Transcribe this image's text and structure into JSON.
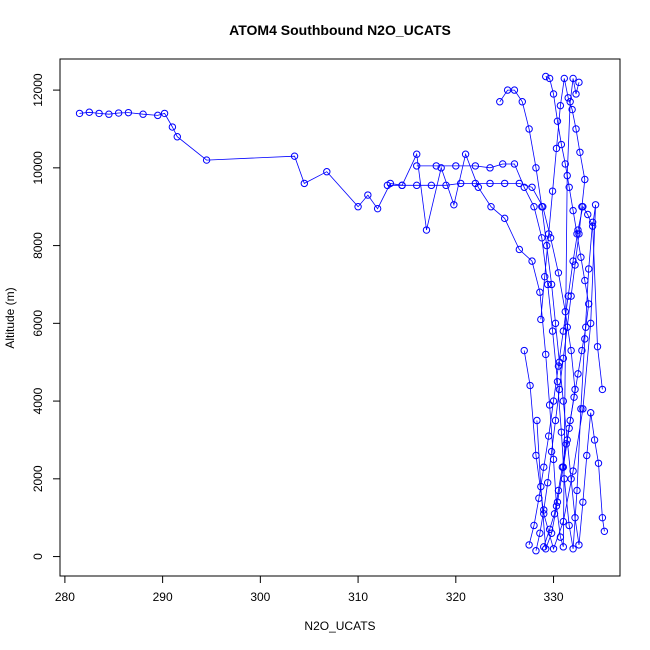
{
  "chart_data": {
    "type": "scatter",
    "title": "ATOM4 Southbound N2O_UCATS",
    "xlabel": "N2O_UCATS",
    "ylabel": "Altitude (m)",
    "xlim": [
      279.5,
      336.8
    ],
    "ylim": [
      -500,
      12800
    ],
    "x_ticks": [
      280,
      290,
      300,
      310,
      320,
      330
    ],
    "y_ticks": [
      0,
      2000,
      4000,
      6000,
      8000,
      10000,
      12000
    ],
    "grid": false,
    "legend": "none",
    "connect_points": true,
    "marker": "open-circle",
    "color": "#0000ff",
    "series": [
      {
        "x": [
          281.5,
          282.5,
          283.5,
          284.5,
          285.5,
          286.5,
          288.0,
          289.5,
          290.2,
          291.0,
          291.5,
          294.5,
          303.5,
          304.5,
          306.8,
          310.0,
          311.0,
          312.0,
          313.3,
          314.5,
          316.0,
          317.0,
          318.5,
          319.8,
          321.0,
          322.3,
          323.6,
          325.0,
          326.5,
          327.8,
          328.6,
          329.2,
          329.6,
          330.0,
          330.3,
          330.7,
          331.0,
          331.4,
          331.7,
          332.0,
          332.3,
          332.6
        ],
        "y": [
          11400,
          11430,
          11400,
          11380,
          11410,
          11420,
          11380,
          11350,
          11400,
          11050,
          10800,
          10200,
          10300,
          9600,
          9900,
          9000,
          9300,
          8950,
          9600,
          9550,
          10350,
          8400,
          10000,
          9050,
          10350,
          9500,
          9000,
          8700,
          7900,
          7600,
          6800,
          5200,
          3900,
          2500,
          1300,
          500,
          250,
          9800,
          11700,
          12300,
          11900,
          12200
        ]
      },
      {
        "x": [
          316.0,
          318.0,
          320.0,
          322.0,
          323.5,
          324.8,
          326.0,
          327.0,
          328.0,
          328.8,
          329.4,
          329.9,
          330.4,
          330.8,
          331.1,
          331.6,
          332.0,
          332.4,
          332.8,
          333.2,
          333.6,
          334.0,
          334.5,
          335.0
        ],
        "y": [
          10050,
          10050,
          10050,
          10050,
          10000,
          10100,
          10100,
          9500,
          9000,
          8200,
          7000,
          5800,
          4500,
          3200,
          2000,
          800,
          200,
          1700,
          3800,
          5600,
          7400,
          8600,
          5400,
          4300
        ]
      },
      {
        "x": [
          324.5,
          325.3,
          326.0,
          326.8,
          327.5,
          328.2,
          328.8,
          329.3,
          329.8,
          330.2,
          330.6,
          331.0,
          331.4,
          331.8,
          332.2,
          332.6,
          333.0,
          333.4,
          333.8,
          334.2,
          334.6,
          335.0,
          335.2
        ],
        "y": [
          11700,
          12000,
          12000,
          11700,
          11000,
          10000,
          9000,
          8000,
          7000,
          6000,
          5000,
          4000,
          3000,
          2000,
          1000,
          300,
          1400,
          2600,
          3700,
          3000,
          2400,
          1000,
          650
        ]
      },
      {
        "x": [
          327.5,
          328.0,
          328.5,
          329.0,
          329.5,
          330.0,
          330.5,
          331.0,
          331.5,
          332.0,
          332.5,
          333.0,
          333.5,
          334.0,
          334.3,
          333.8,
          333.0,
          332.0,
          331.0,
          330.0,
          329.0,
          328.2,
          327.6,
          327.0
        ],
        "y": [
          300,
          800,
          1500,
          2300,
          3100,
          4000,
          4900,
          5800,
          6700,
          7600,
          8400,
          9000,
          8800,
          8500,
          9050,
          6000,
          3800,
          2200,
          900,
          200,
          1100,
          2600,
          4400,
          5300
        ]
      },
      {
        "x": [
          328.2,
          328.6,
          329.0,
          329.4,
          329.8,
          330.2,
          330.6,
          331.0,
          331.4,
          331.8,
          332.2,
          332.6,
          332.9,
          333.2,
          332.7,
          332.3,
          331.9,
          331.5,
          331.1,
          330.7,
          330.3,
          329.9,
          329.5,
          329.1,
          328.7
        ],
        "y": [
          150,
          600,
          1200,
          1900,
          2700,
          3500,
          4300,
          5100,
          5900,
          6700,
          7500,
          8300,
          9000,
          9700,
          10400,
          11000,
          11500,
          11800,
          12300,
          11600,
          10500,
          9400,
          8300,
          7200,
          6100
        ]
      },
      {
        "x": [
          329.0,
          329.6,
          330.1,
          330.5,
          330.9,
          331.3,
          331.7,
          332.1,
          332.5,
          332.9,
          333.3,
          333.6,
          333.2,
          332.8,
          332.4,
          332.0,
          331.6,
          331.2,
          330.8,
          330.4,
          330.0,
          329.6,
          329.2
        ],
        "y": [
          250,
          700,
          1100,
          1700,
          2300,
          2900,
          3500,
          4100,
          4700,
          5300,
          5900,
          6500,
          7100,
          7700,
          8300,
          8900,
          9500,
          10100,
          10600,
          11200,
          11900,
          12300,
          12350
        ]
      },
      {
        "x": [
          313.0,
          314.5,
          316.0,
          317.5,
          319.0,
          320.5,
          322.0,
          323.5,
          325.0,
          326.5,
          327.8,
          328.9,
          329.7,
          330.5,
          331.2,
          331.8,
          332.2,
          331.6,
          331.0,
          330.4,
          329.8,
          329.2,
          328.7,
          328.3
        ],
        "y": [
          9550,
          9550,
          9550,
          9550,
          9550,
          9600,
          9600,
          9600,
          9600,
          9600,
          9500,
          9000,
          8200,
          7300,
          6300,
          5300,
          4300,
          3300,
          2300,
          1400,
          600,
          200,
          1800,
          3500
        ]
      }
    ]
  }
}
